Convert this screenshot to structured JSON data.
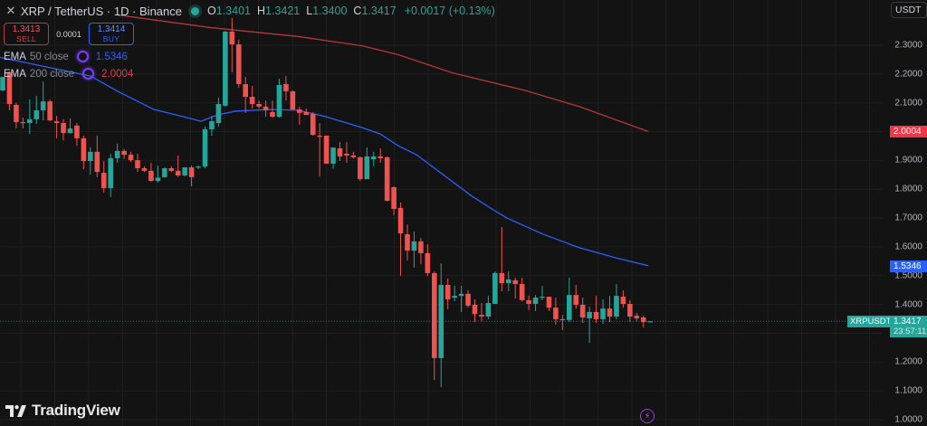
{
  "header": {
    "close_icon": "close-icon",
    "title": "XRP / TetherUS · 1D · Binance",
    "status_dot_color": "#26a69a",
    "ohlc": {
      "o_label": "O",
      "o_value": "1.3401",
      "h_label": "H",
      "h_value": "1.3421",
      "l_label": "L",
      "l_value": "1.3400",
      "c_label": "C",
      "c_value": "1.3417",
      "change": "+0.0017 (+0.13%)"
    }
  },
  "trade": {
    "sell_price": "1.3413",
    "sell_label": "SELL",
    "spread": "0.0001",
    "buy_price": "1.3414",
    "buy_label": "BUY"
  },
  "indicators": [
    {
      "name": "EMA",
      "params": "50 close",
      "value": "1.5346",
      "color": "#2962ff",
      "icon": "sync-icon"
    },
    {
      "name": "EMA",
      "params": "200 close",
      "value": "2.0004",
      "color": "#f23645",
      "icon": "sync-icon"
    }
  ],
  "collapse_icon": "chevron-up-icon",
  "axis": {
    "currency": "USDT",
    "labels": [
      "2.3000",
      "2.2000",
      "2.1000",
      "1.9000",
      "1.8000",
      "1.7000",
      "1.6000",
      "1.5000",
      "1.4000",
      "1.2000",
      "1.1000",
      "1.0000"
    ],
    "ema200_tag": "2.0004",
    "ema50_tag": "1.5346",
    "symbol_tag": "XRPUSDT",
    "price_tag": "1.3417",
    "countdown": "23:57:11"
  },
  "branding": {
    "logo_text": "TradingView"
  },
  "bottom_icon": "lightning-icon",
  "colors": {
    "up": "#26a69a",
    "down": "#ef5350",
    "ema50": "#2962ff",
    "ema200": "#b5383c",
    "background": "#131313",
    "grid": "#1f1f1f"
  },
  "chart_data": {
    "type": "candlestick",
    "title": "XRP / TetherUS · 1D · Binance",
    "ylabel": "USDT",
    "ylim": [
      0.985,
      2.45
    ],
    "grid": true,
    "last_close": 1.3417,
    "candles": [
      {
        "o": 2.143,
        "h": 2.19,
        "l": 2.14,
        "c": 2.19
      },
      {
        "o": 2.206,
        "h": 2.21,
        "l": 2.074,
        "c": 2.096
      },
      {
        "o": 2.093,
        "h": 2.1,
        "l": 2.011,
        "c": 2.033
      },
      {
        "o": 2.033,
        "h": 2.049,
        "l": 2.011,
        "c": 2.03
      },
      {
        "o": 2.03,
        "h": 2.112,
        "l": 1.992,
        "c": 2.043
      },
      {
        "o": 2.043,
        "h": 2.124,
        "l": 2.027,
        "c": 2.074
      },
      {
        "o": 2.074,
        "h": 2.174,
        "l": 2.039,
        "c": 2.105
      },
      {
        "o": 2.105,
        "h": 2.112,
        "l": 2.036,
        "c": 2.039
      },
      {
        "o": 2.036,
        "h": 2.055,
        "l": 1.977,
        "c": 2.03
      },
      {
        "o": 2.03,
        "h": 2.043,
        "l": 1.97,
        "c": 1.995
      },
      {
        "o": 1.995,
        "h": 2.046,
        "l": 1.995,
        "c": 2.011
      },
      {
        "o": 2.021,
        "h": 2.03,
        "l": 1.951,
        "c": 1.977
      },
      {
        "o": 1.977,
        "h": 1.986,
        "l": 1.87,
        "c": 1.898
      },
      {
        "o": 1.898,
        "h": 1.945,
        "l": 1.851,
        "c": 1.93
      },
      {
        "o": 1.93,
        "h": 1.986,
        "l": 1.842,
        "c": 1.86
      },
      {
        "o": 1.857,
        "h": 1.898,
        "l": 1.788,
        "c": 1.804
      },
      {
        "o": 1.804,
        "h": 1.923,
        "l": 1.773,
        "c": 1.908
      },
      {
        "o": 1.908,
        "h": 1.958,
        "l": 1.892,
        "c": 1.933
      },
      {
        "o": 1.933,
        "h": 1.94,
        "l": 1.905,
        "c": 1.92
      },
      {
        "o": 1.92,
        "h": 1.93,
        "l": 1.895,
        "c": 1.901
      },
      {
        "o": 1.901,
        "h": 1.923,
        "l": 1.86,
        "c": 1.873
      },
      {
        "o": 1.873,
        "h": 1.88,
        "l": 1.86,
        "c": 1.864
      },
      {
        "o": 1.864,
        "h": 1.892,
        "l": 1.826,
        "c": 1.829
      },
      {
        "o": 1.829,
        "h": 1.882,
        "l": 1.823,
        "c": 1.84
      },
      {
        "o": 1.842,
        "h": 1.876,
        "l": 1.84,
        "c": 1.873
      },
      {
        "o": 1.873,
        "h": 1.88,
        "l": 1.86,
        "c": 1.864
      },
      {
        "o": 1.864,
        "h": 1.917,
        "l": 1.842,
        "c": 1.848
      },
      {
        "o": 1.848,
        "h": 1.876,
        "l": 1.845,
        "c": 1.876
      },
      {
        "o": 1.876,
        "h": 1.882,
        "l": 1.81,
        "c": 1.842
      },
      {
        "o": 1.876,
        "h": 1.882,
        "l": 1.87,
        "c": 1.879
      },
      {
        "o": 1.879,
        "h": 2.017,
        "l": 1.873,
        "c": 2.008
      },
      {
        "o": 2.008,
        "h": 2.055,
        "l": 1.986,
        "c": 2.036
      },
      {
        "o": 2.03,
        "h": 2.118,
        "l": 2.017,
        "c": 2.096
      },
      {
        "o": 2.09,
        "h": 2.35,
        "l": 2.087,
        "c": 2.347
      },
      {
        "o": 2.347,
        "h": 2.394,
        "l": 2.206,
        "c": 2.303
      },
      {
        "o": 2.303,
        "h": 2.319,
        "l": 2.152,
        "c": 2.165
      },
      {
        "o": 2.165,
        "h": 2.19,
        "l": 2.065,
        "c": 2.121
      },
      {
        "o": 2.121,
        "h": 2.159,
        "l": 2.08,
        "c": 2.096
      },
      {
        "o": 2.096,
        "h": 2.108,
        "l": 2.08,
        "c": 2.087
      },
      {
        "o": 2.087,
        "h": 2.108,
        "l": 2.052,
        "c": 2.074
      },
      {
        "o": 2.068,
        "h": 2.108,
        "l": 2.049,
        "c": 2.052
      },
      {
        "o": 2.052,
        "h": 2.184,
        "l": 2.049,
        "c": 2.162
      },
      {
        "o": 2.165,
        "h": 2.193,
        "l": 2.108,
        "c": 2.14
      },
      {
        "o": 2.14,
        "h": 2.143,
        "l": 2.077,
        "c": 2.077
      },
      {
        "o": 2.077,
        "h": 2.087,
        "l": 2.024,
        "c": 2.065
      },
      {
        "o": 2.068,
        "h": 2.08,
        "l": 2.058,
        "c": 2.058
      },
      {
        "o": 2.062,
        "h": 2.068,
        "l": 1.986,
        "c": 1.989
      },
      {
        "o": 1.986,
        "h": 2.03,
        "l": 1.845,
        "c": 1.983
      },
      {
        "o": 1.986,
        "h": 1.986,
        "l": 1.892,
        "c": 1.889
      },
      {
        "o": 1.889,
        "h": 1.945,
        "l": 1.87,
        "c": 1.945
      },
      {
        "o": 1.942,
        "h": 1.964,
        "l": 1.898,
        "c": 1.914
      },
      {
        "o": 1.923,
        "h": 1.964,
        "l": 1.892,
        "c": 1.917
      },
      {
        "o": 1.917,
        "h": 1.93,
        "l": 1.908,
        "c": 1.911
      },
      {
        "o": 1.911,
        "h": 1.914,
        "l": 1.829,
        "c": 1.835
      },
      {
        "o": 1.835,
        "h": 1.945,
        "l": 1.835,
        "c": 1.914
      },
      {
        "o": 1.904,
        "h": 1.93,
        "l": 1.88,
        "c": 1.914
      },
      {
        "o": 1.914,
        "h": 1.942,
        "l": 1.892,
        "c": 1.908
      },
      {
        "o": 1.911,
        "h": 1.914,
        "l": 1.757,
        "c": 1.76
      },
      {
        "o": 1.807,
        "h": 1.81,
        "l": 1.71,
        "c": 1.732
      },
      {
        "o": 1.735,
        "h": 1.754,
        "l": 1.499,
        "c": 1.647
      },
      {
        "o": 1.644,
        "h": 1.678,
        "l": 1.553,
        "c": 1.587
      },
      {
        "o": 1.587,
        "h": 1.653,
        "l": 1.528,
        "c": 1.619
      },
      {
        "o": 1.619,
        "h": 1.631,
        "l": 1.54,
        "c": 1.578
      },
      {
        "o": 1.578,
        "h": 1.609,
        "l": 1.499,
        "c": 1.509
      },
      {
        "o": 1.509,
        "h": 1.515,
        "l": 1.138,
        "c": 1.214
      },
      {
        "o": 1.214,
        "h": 1.543,
        "l": 1.113,
        "c": 1.468
      },
      {
        "o": 1.468,
        "h": 1.49,
        "l": 1.383,
        "c": 1.418
      },
      {
        "o": 1.424,
        "h": 1.465,
        "l": 1.411,
        "c": 1.43
      },
      {
        "o": 1.43,
        "h": 1.465,
        "l": 1.374,
        "c": 1.437
      },
      {
        "o": 1.437,
        "h": 1.449,
        "l": 1.389,
        "c": 1.396
      },
      {
        "o": 1.399,
        "h": 1.418,
        "l": 1.339,
        "c": 1.367
      },
      {
        "o": 1.364,
        "h": 1.405,
        "l": 1.342,
        "c": 1.358
      },
      {
        "o": 1.358,
        "h": 1.43,
        "l": 1.349,
        "c": 1.405
      },
      {
        "o": 1.402,
        "h": 1.515,
        "l": 1.402,
        "c": 1.509
      },
      {
        "o": 1.509,
        "h": 1.669,
        "l": 1.446,
        "c": 1.474
      },
      {
        "o": 1.474,
        "h": 1.515,
        "l": 1.446,
        "c": 1.487
      },
      {
        "o": 1.484,
        "h": 1.493,
        "l": 1.421,
        "c": 1.471
      },
      {
        "o": 1.471,
        "h": 1.493,
        "l": 1.411,
        "c": 1.415
      },
      {
        "o": 1.415,
        "h": 1.431,
        "l": 1.38,
        "c": 1.402
      },
      {
        "o": 1.402,
        "h": 1.433,
        "l": 1.377,
        "c": 1.424
      },
      {
        "o": 1.424,
        "h": 1.465,
        "l": 1.415,
        "c": 1.427
      },
      {
        "o": 1.427,
        "h": 1.427,
        "l": 1.377,
        "c": 1.389
      },
      {
        "o": 1.389,
        "h": 1.424,
        "l": 1.33,
        "c": 1.349
      },
      {
        "o": 1.349,
        "h": 1.364,
        "l": 1.311,
        "c": 1.346
      },
      {
        "o": 1.346,
        "h": 1.493,
        "l": 1.339,
        "c": 1.433
      },
      {
        "o": 1.433,
        "h": 1.468,
        "l": 1.386,
        "c": 1.399
      },
      {
        "o": 1.399,
        "h": 1.424,
        "l": 1.336,
        "c": 1.355
      },
      {
        "o": 1.352,
        "h": 1.393,
        "l": 1.267,
        "c": 1.374
      },
      {
        "o": 1.374,
        "h": 1.43,
        "l": 1.336,
        "c": 1.349
      },
      {
        "o": 1.349,
        "h": 1.418,
        "l": 1.333,
        "c": 1.386
      },
      {
        "o": 1.386,
        "h": 1.43,
        "l": 1.339,
        "c": 1.358
      },
      {
        "o": 1.358,
        "h": 1.471,
        "l": 1.349,
        "c": 1.43
      },
      {
        "o": 1.427,
        "h": 1.449,
        "l": 1.389,
        "c": 1.402
      },
      {
        "o": 1.402,
        "h": 1.415,
        "l": 1.339,
        "c": 1.358
      },
      {
        "o": 1.361,
        "h": 1.371,
        "l": 1.342,
        "c": 1.352
      },
      {
        "o": 1.355,
        "h": 1.361,
        "l": 1.32,
        "c": 1.339
      },
      {
        "o": 1.3401,
        "h": 1.3421,
        "l": 1.34,
        "c": 1.3417
      }
    ],
    "ema50": [
      [
        0,
        2.258
      ],
      [
        100,
        2.193
      ],
      [
        130,
        2.14
      ],
      [
        170,
        2.077
      ],
      [
        210,
        2.046
      ],
      [
        222,
        2.036
      ],
      [
        240,
        2.058
      ],
      [
        260,
        2.071
      ],
      [
        300,
        2.077
      ],
      [
        330,
        2.074
      ],
      [
        360,
        2.052
      ],
      [
        400,
        2.014
      ],
      [
        420,
        1.992
      ],
      [
        440,
        1.951
      ],
      [
        460,
        1.92
      ],
      [
        480,
        1.873
      ],
      [
        500,
        1.826
      ],
      [
        520,
        1.779
      ],
      [
        540,
        1.738
      ],
      [
        560,
        1.7
      ],
      [
        600,
        1.644
      ],
      [
        640,
        1.597
      ],
      [
        680,
        1.562
      ],
      [
        716,
        1.5346
      ]
    ],
    "ema200": [
      [
        130,
        2.405
      ],
      [
        233,
        2.361
      ],
      [
        330,
        2.33
      ],
      [
        400,
        2.298
      ],
      [
        440,
        2.267
      ],
      [
        500,
        2.204
      ],
      [
        580,
        2.143
      ],
      [
        640,
        2.087
      ],
      [
        716,
        2.0004
      ]
    ],
    "x_start": 3,
    "x_step": 7.45
  }
}
